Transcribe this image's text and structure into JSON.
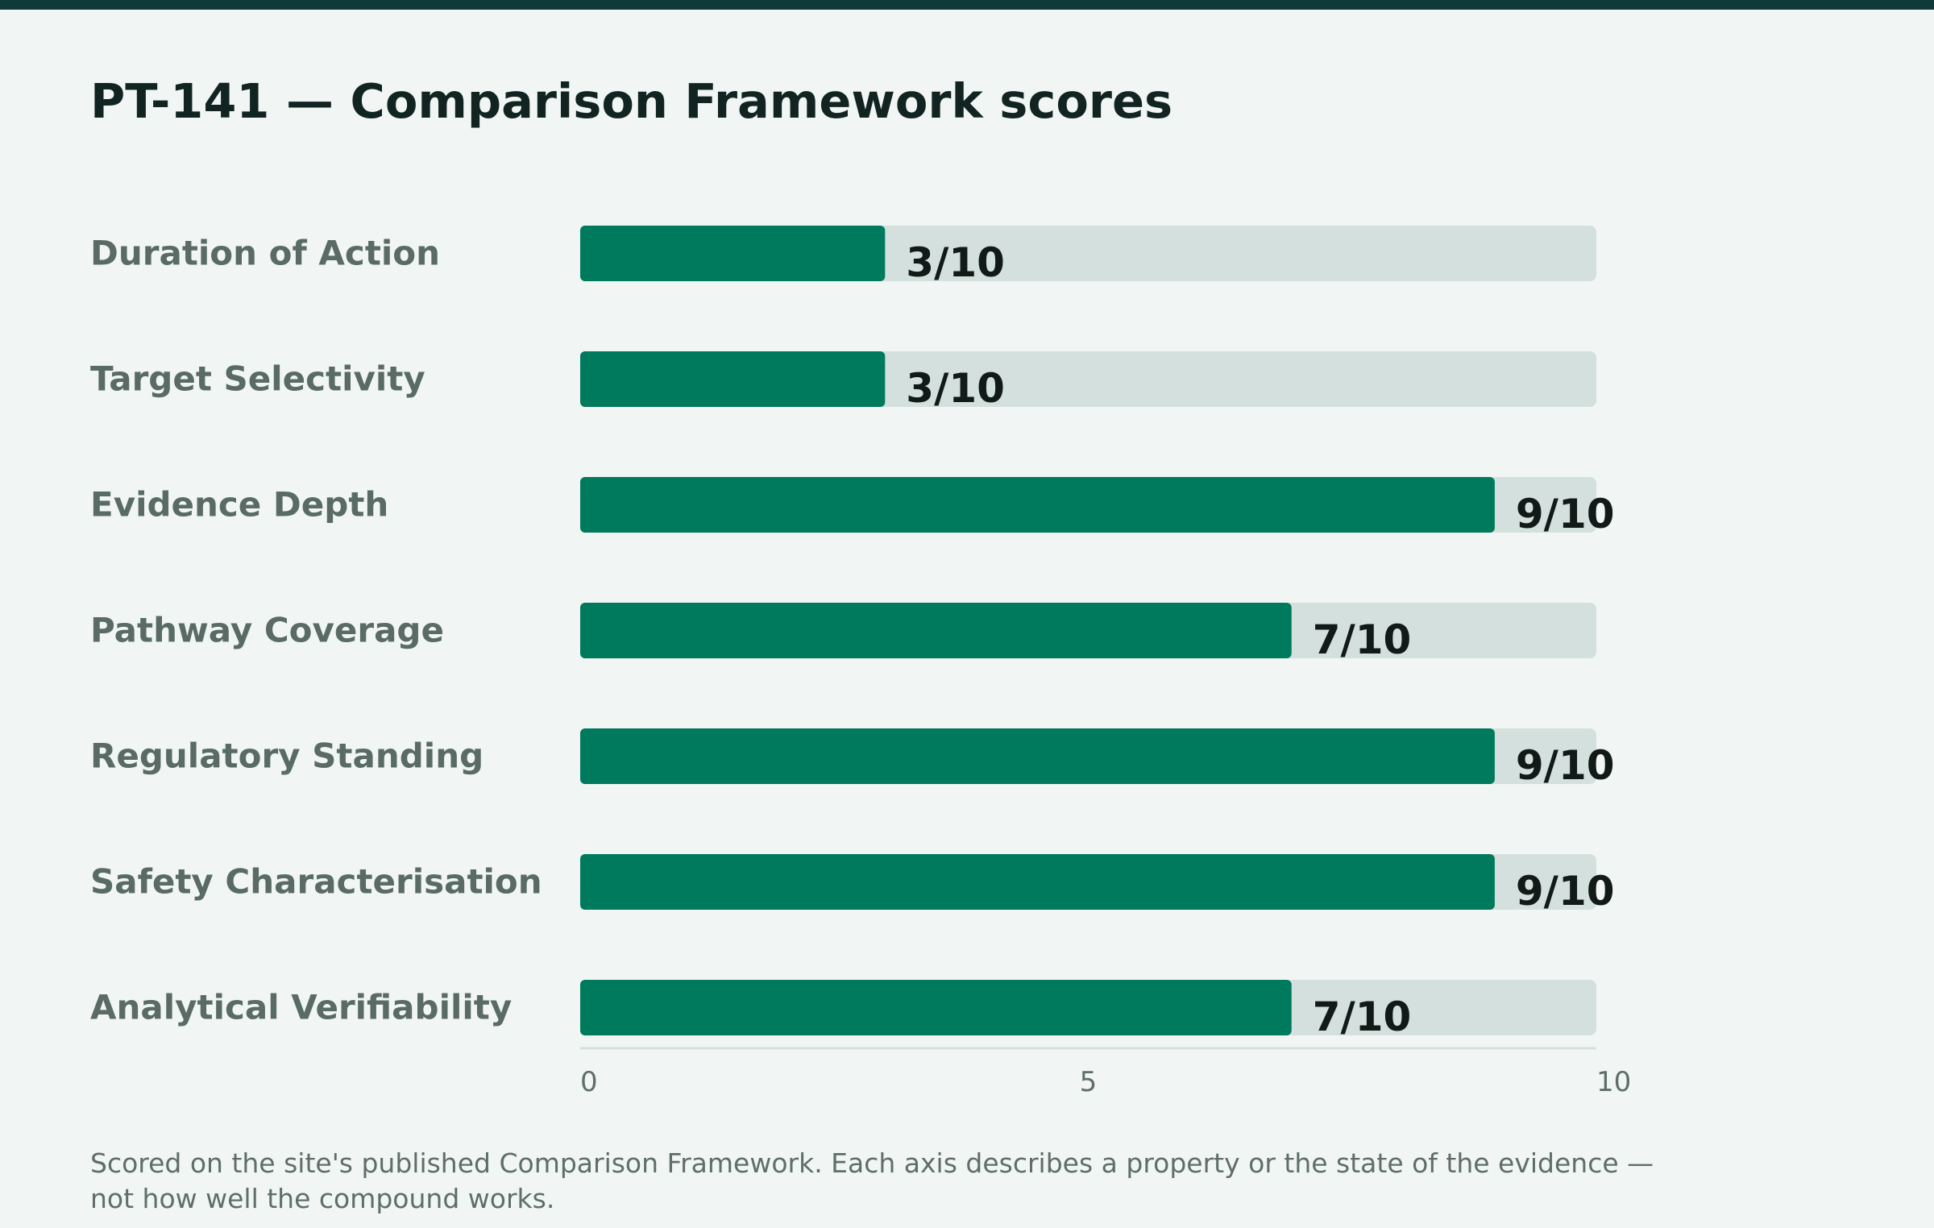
{
  "colors": {
    "accent": "#007a5c",
    "track": "#d3e0dd",
    "title_text": "#122422",
    "category_text": "#5a6b66",
    "value_text": "#121a18",
    "tick_text": "#5f6e6a",
    "top_bar": "#103a3a",
    "background": "#f1f6f4"
  },
  "chart_data": {
    "type": "bar",
    "orientation": "horizontal",
    "title": "PT-141 — Comparison Framework scores",
    "categories": [
      "Duration of Action",
      "Target Selectivity",
      "Evidence Depth",
      "Pathway Coverage",
      "Regulatory Standing",
      "Safety Characterisation",
      "Analytical Verifiability"
    ],
    "values": [
      3,
      3,
      9,
      7,
      9,
      9,
      7
    ],
    "value_labels": [
      "3/10",
      "3/10",
      "9/10",
      "7/10",
      "9/10",
      "9/10",
      "7/10"
    ],
    "xlim": [
      0,
      10
    ],
    "x_ticks": [
      {
        "value": 0,
        "label": "0"
      },
      {
        "value": 5,
        "label": "5"
      },
      {
        "value": 10,
        "label": "10"
      }
    ],
    "xlabel": "",
    "ylabel": "",
    "grid": false,
    "legend": "none"
  },
  "footnote": "Scored on the site's published Comparison Framework. Each axis describes a property or the state of the evidence — not how well the compound works."
}
